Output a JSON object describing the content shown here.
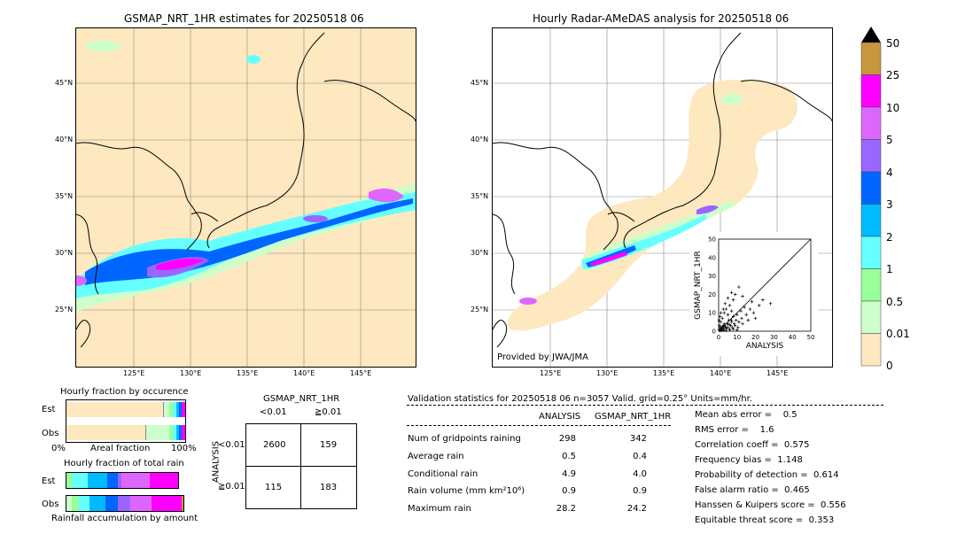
{
  "left_map": {
    "title": "GSMAP_NRT_1HR estimates for 20250518 06",
    "lat_labels": [
      "45°N",
      "40°N",
      "35°N",
      "30°N",
      "25°N"
    ],
    "lon_labels": [
      "125°E",
      "130°E",
      "135°E",
      "140°E",
      "145°E"
    ]
  },
  "right_map": {
    "title": "Hourly Radar-AMeDAS analysis for 20250518 06",
    "lat_labels": [
      "45°N",
      "40°N",
      "35°N",
      "30°N",
      "25°N"
    ],
    "lon_labels": [
      "125°E",
      "130°E",
      "135°E",
      "140°E",
      "145°E"
    ],
    "credit": "Provided by JWA/JMA"
  },
  "colorbar": {
    "labels": [
      "50",
      "25",
      "10",
      "5",
      "4",
      "3",
      "2",
      "1",
      "0.5",
      "0.01",
      "0"
    ],
    "colors": [
      "#c8963c",
      "#ff00ff",
      "#dd66ff",
      "#9966ff",
      "#0066ff",
      "#00bbff",
      "#66ffff",
      "#99ff99",
      "#ccffcc",
      "#fde8bf"
    ]
  },
  "fraction_occurrence": {
    "title": "Hourly fraction by occurence",
    "row_labels": [
      "Est",
      "Obs"
    ],
    "axis_left": "0%",
    "axis_mid": "Areal fraction",
    "axis_right": "100%"
  },
  "fraction_total": {
    "title": "Hourly fraction of total rain",
    "row_labels": [
      "Est",
      "Obs"
    ],
    "caption": "Rainfall accumulation by amount"
  },
  "contingency": {
    "title": "GSMAP_NRT_1HR",
    "col_labels": [
      "<0.01",
      "≧0.01"
    ],
    "row_axis": "ANALYSIS",
    "row_labels": [
      "<0.01",
      "≧0.01"
    ],
    "cells": [
      [
        "2600",
        "159"
      ],
      [
        "115",
        "183"
      ]
    ]
  },
  "validation": {
    "header": "Validation statistics for 20250518 06  n=3057 Valid. grid=0.25° Units=mm/hr.",
    "col_analysis": "ANALYSIS",
    "col_gsmap": "GSMAP_NRT_1HR",
    "rows": [
      {
        "label": "Num of gridpoints raining",
        "analysis": "298",
        "gsmap": "342"
      },
      {
        "label": "Average rain",
        "analysis": "0.5",
        "gsmap": "0.4"
      },
      {
        "label": "Conditional rain",
        "analysis": "4.9",
        "gsmap": "4.0"
      },
      {
        "label": "Rain volume (mm km²10⁶)",
        "analysis": "0.9",
        "gsmap": "0.9"
      },
      {
        "label": "Maximum rain",
        "analysis": "28.2",
        "gsmap": "24.2"
      }
    ],
    "scores": [
      "Mean abs error =    0.5",
      "RMS error =    1.6",
      "Correlation coeff =  0.575",
      "Frequency bias =  1.148",
      "Probability of detection =  0.614",
      "False alarm ratio =  0.465",
      "Hanssen & Kuipers score =  0.556",
      "Equitable threat score =  0.353"
    ]
  },
  "chart_data": {
    "type": "scatter",
    "xlabel": "ANALYSIS",
    "ylabel": "GSMAP_NRT_1HR",
    "xlim": [
      0,
      50
    ],
    "ylim": [
      0,
      50
    ],
    "ticks": [
      "0",
      "10",
      "20",
      "30",
      "40",
      "50"
    ],
    "points": [
      [
        0.5,
        1
      ],
      [
        1,
        0.3
      ],
      [
        1.5,
        2
      ],
      [
        2,
        1
      ],
      [
        2.5,
        3
      ],
      [
        3,
        0.5
      ],
      [
        3.5,
        2.5
      ],
      [
        4,
        1.5
      ],
      [
        4.5,
        4
      ],
      [
        5,
        2
      ],
      [
        5.5,
        6
      ],
      [
        6,
        1
      ],
      [
        6.5,
        3
      ],
      [
        7,
        5
      ],
      [
        7.5,
        2
      ],
      [
        8,
        8
      ],
      [
        8.5,
        4
      ],
      [
        9,
        3
      ],
      [
        9.5,
        6
      ],
      [
        10,
        9
      ],
      [
        10.5,
        2
      ],
      [
        11,
        5
      ],
      [
        12,
        11
      ],
      [
        12.5,
        7
      ],
      [
        13,
        4
      ],
      [
        14,
        13
      ],
      [
        15,
        9
      ],
      [
        16,
        6
      ],
      [
        17,
        12
      ],
      [
        18,
        16
      ],
      [
        19,
        10
      ],
      [
        20,
        7
      ],
      [
        22,
        14
      ],
      [
        24,
        17
      ],
      [
        28.2,
        15
      ],
      [
        1,
        5
      ],
      [
        2,
        7
      ],
      [
        3,
        10
      ],
      [
        4,
        12
      ],
      [
        5,
        9
      ],
      [
        6,
        14
      ],
      [
        7,
        11
      ],
      [
        8,
        17
      ],
      [
        9,
        20
      ],
      [
        11,
        24
      ],
      [
        13,
        19
      ],
      [
        2,
        0.5
      ],
      [
        1,
        2
      ],
      [
        0.5,
        3
      ],
      [
        3,
        4
      ],
      [
        4,
        0.5
      ],
      [
        6,
        0.8
      ],
      [
        8,
        1.2
      ],
      [
        10,
        0.6
      ],
      [
        0.3,
        6
      ],
      [
        0.8,
        8
      ],
      [
        1.2,
        10
      ],
      [
        2.5,
        12
      ],
      [
        3.5,
        15
      ],
      [
        5,
        18
      ],
      [
        7,
        21
      ],
      [
        0.5,
        0.5
      ],
      [
        1.5,
        1
      ],
      [
        2,
        2
      ],
      [
        2.5,
        1.5
      ],
      [
        3,
        3
      ],
      [
        4,
        2
      ],
      [
        5,
        4
      ],
      [
        6,
        3.5
      ],
      [
        7,
        6
      ]
    ]
  }
}
